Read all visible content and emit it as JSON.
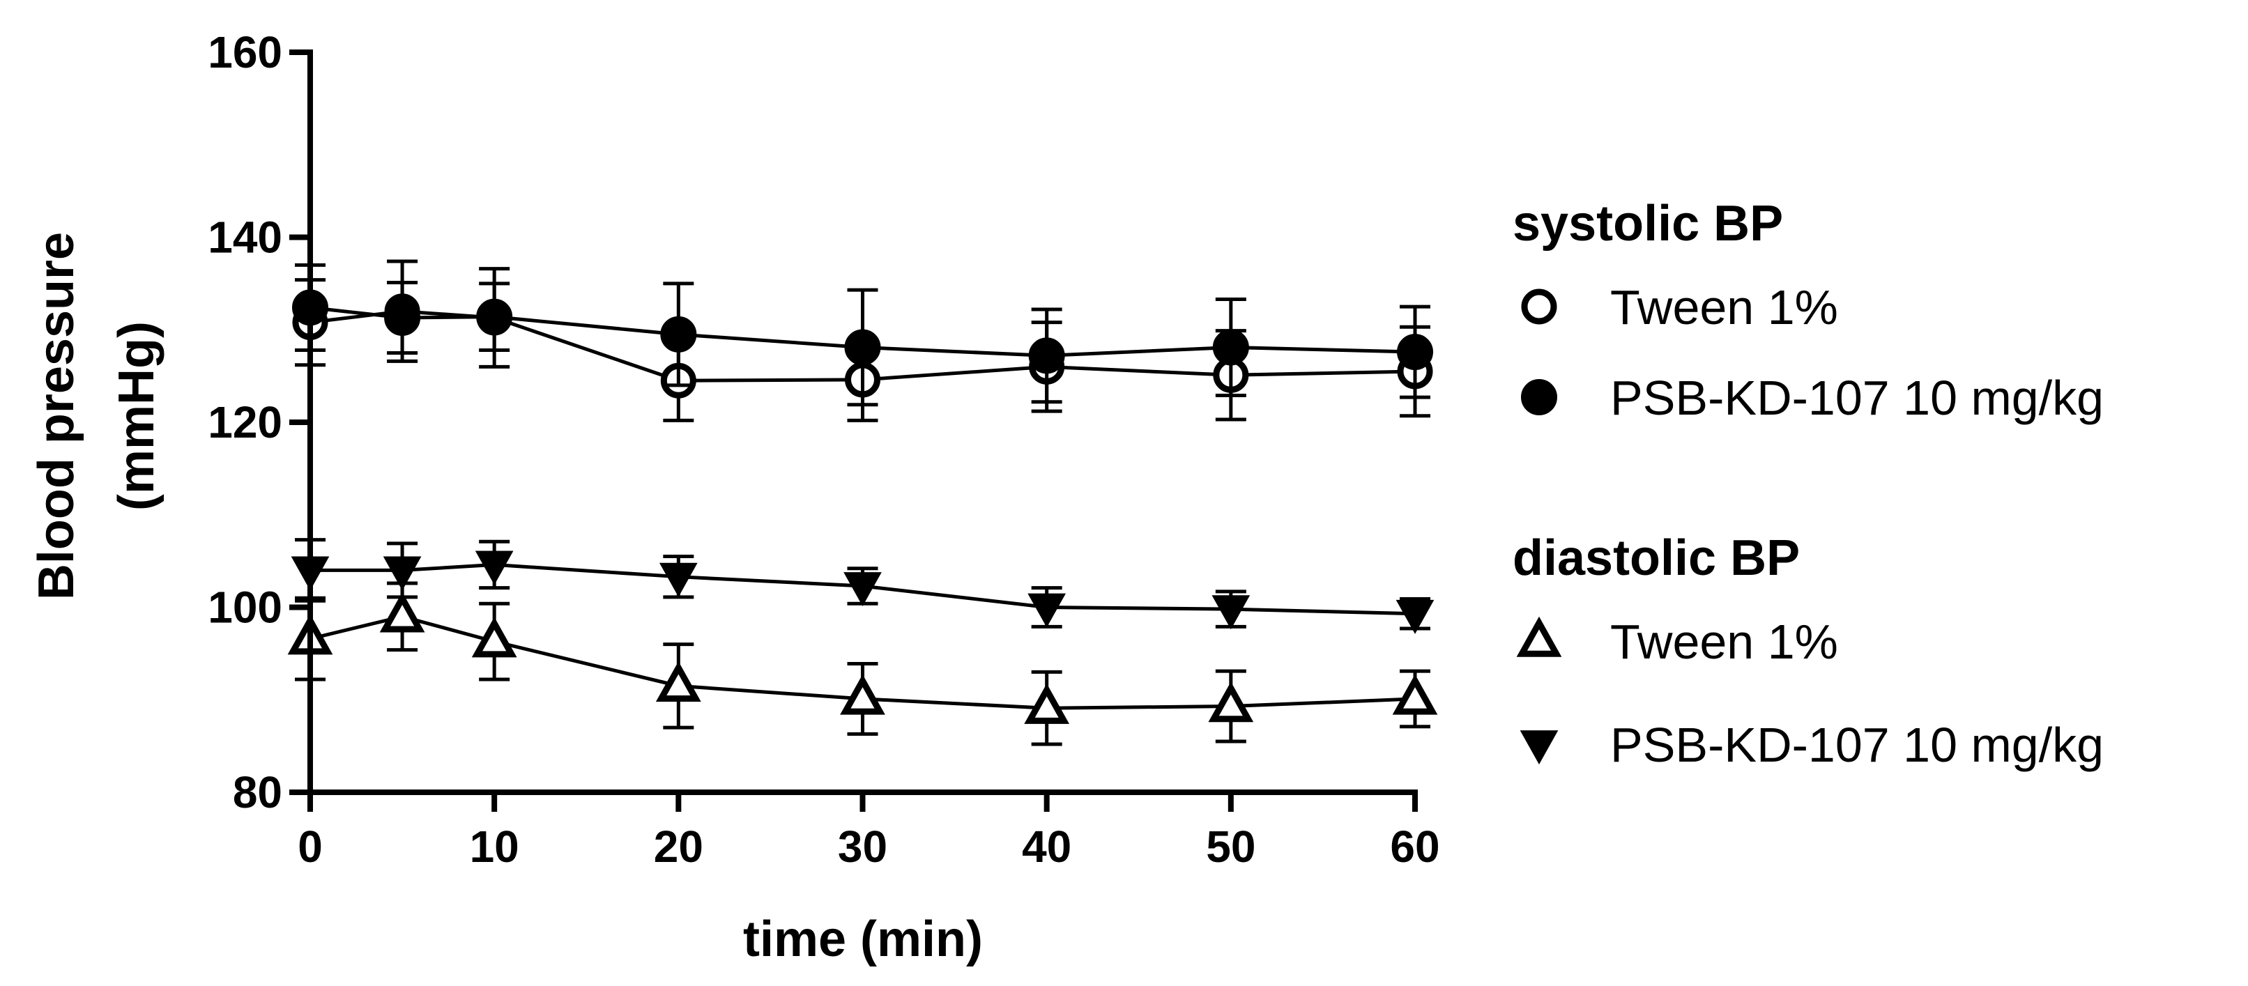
{
  "chart_data": {
    "type": "line",
    "xlabel": "time (min)",
    "ylabel_line1": "Blood pressure",
    "ylabel_line2": "(mmHg)",
    "xlim": [
      0,
      60
    ],
    "ylim": [
      80,
      160
    ],
    "x_ticks": [
      0,
      10,
      20,
      30,
      40,
      50,
      60
    ],
    "y_ticks": [
      80,
      100,
      120,
      140,
      160
    ],
    "x": [
      0,
      5,
      10,
      20,
      30,
      40,
      50,
      60
    ],
    "grid": false,
    "legend_position": "right",
    "legend_groups": [
      {
        "title": "systolic BP",
        "series": [
          0,
          1
        ]
      },
      {
        "title": "diastolic BP",
        "series": [
          2,
          3
        ]
      }
    ],
    "series": [
      {
        "name": "Tween 1%",
        "group": "systolic BP",
        "marker": "circle-open",
        "values": [
          130.8,
          132.0,
          131.3,
          124.5,
          124.6,
          126.0,
          125.1,
          125.5
        ],
        "errors": [
          4.6,
          5.4,
          5.3,
          4.3,
          4.4,
          4.8,
          4.8,
          4.8
        ]
      },
      {
        "name": "PSB-KD-107 10 mg/kg",
        "group": "systolic BP",
        "marker": "circle-filled",
        "values": [
          132.4,
          131.3,
          131.4,
          129.5,
          128.1,
          127.2,
          128.1,
          127.6
        ],
        "errors": [
          4.6,
          3.8,
          3.6,
          5.5,
          6.2,
          5.0,
          5.2,
          4.9
        ]
      },
      {
        "name": "Tween 1%",
        "group": "diastolic BP",
        "marker": "triangle-up-open",
        "values": [
          96.6,
          99.0,
          96.3,
          91.5,
          90.1,
          89.1,
          89.3,
          90.1
        ],
        "errors": [
          4.4,
          3.6,
          4.1,
          4.5,
          3.8,
          3.9,
          3.8,
          3.0
        ]
      },
      {
        "name": "PSB-KD-107 10 mg/kg",
        "group": "diastolic BP",
        "marker": "triangle-down-filled",
        "values": [
          104.0,
          104.0,
          104.6,
          103.3,
          102.3,
          100.0,
          99.8,
          99.3
        ],
        "errors": [
          3.3,
          2.9,
          2.5,
          2.2,
          1.9,
          2.1,
          1.9,
          1.6
        ]
      }
    ]
  }
}
